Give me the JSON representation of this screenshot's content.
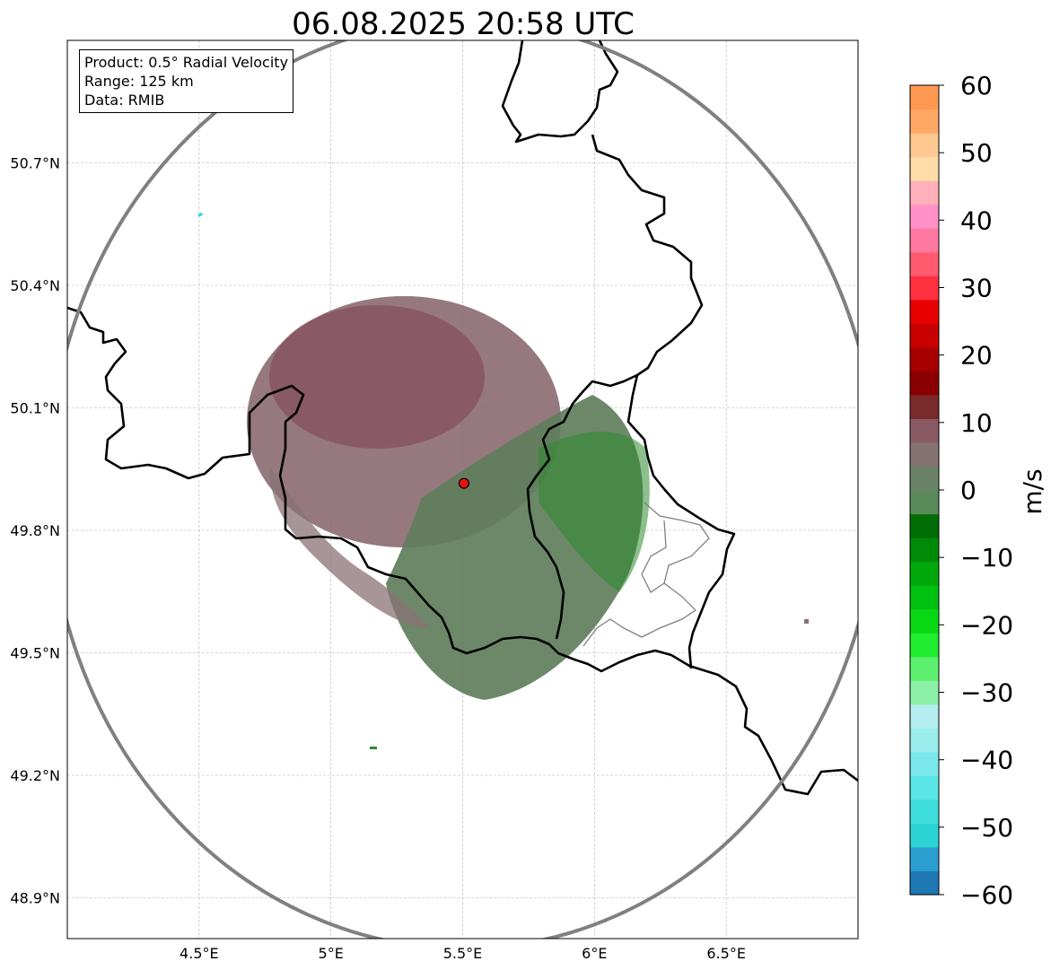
{
  "title": "06.08.2025 20:58 UTC",
  "info": {
    "product": "Product: 0.5° Radial Velocity",
    "range": "Range: 125 km",
    "data": "Data: RMIB"
  },
  "chart_data": {
    "type": "map",
    "lon_range": [
      4.0,
      7.0
    ],
    "lat_range": [
      48.8,
      51.0
    ],
    "x_ticks": [
      4.5,
      5.0,
      5.5,
      6.0,
      6.5
    ],
    "x_tick_labels": [
      "4.5°E",
      "5°E",
      "5.5°E",
      "6°E",
      "6.5°E"
    ],
    "y_ticks": [
      50.7,
      50.4,
      50.1,
      49.8,
      49.5,
      49.2,
      48.9
    ],
    "y_tick_labels": [
      "50.7°N",
      "50.4°N",
      "50.1°N",
      "49.8°N",
      "49.5°N",
      "49.2°N",
      "48.9°N"
    ],
    "grid": true,
    "radar_site": {
      "lon": 5.505,
      "lat": 49.915
    },
    "colorbar": {
      "label": "m/s",
      "min": -60,
      "max": 60,
      "ticks": [
        60,
        50,
        40,
        30,
        20,
        10,
        0,
        -10,
        -20,
        -30,
        -40,
        -50,
        -60
      ],
      "tick_labels": [
        "60",
        "50",
        "40",
        "30",
        "20",
        "10",
        "0",
        "−10",
        "−20",
        "−30",
        "−40",
        "−50",
        "−60"
      ],
      "colors": [
        "#1f77b4",
        "#2a9fd0",
        "#2dd4d6",
        "#3fdede",
        "#5ae6e6",
        "#7ae8ea",
        "#9aeced",
        "#b4eef0",
        "#8cf0a8",
        "#5cf06e",
        "#20ec30",
        "#08d814",
        "#00c010",
        "#00a80c",
        "#008a08",
        "#006e04",
        "#5a8a5a",
        "#6a8266",
        "#857272",
        "#8a5a64",
        "#7a2a2a",
        "#8a0000",
        "#a80000",
        "#c80000",
        "#e80000",
        "#ff3040",
        "#ff5a6e",
        "#ff78a0",
        "#ff90c8",
        "#ffb0b8",
        "#ffdca8",
        "#ffc890",
        "#ffa866",
        "#ff9850"
      ]
    }
  }
}
